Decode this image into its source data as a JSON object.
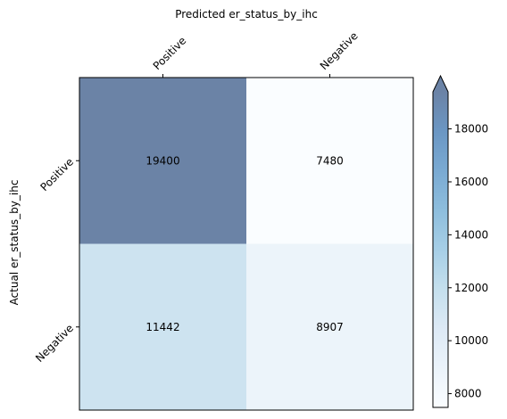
{
  "chart_data": {
    "type": "heatmap",
    "title": "Predicted er_status_by_ihc",
    "xlabel": "Predicted er_status_by_ihc",
    "ylabel": "Actual er_status_by_ihc",
    "x_categories": [
      "Positive",
      "Negative"
    ],
    "y_categories": [
      "Positive",
      "Negative"
    ],
    "values": [
      [
        19400,
        7480
      ],
      [
        11442,
        8907
      ]
    ],
    "colorbar": {
      "ticks": [
        8000,
        10000,
        12000,
        14000,
        16000,
        18000
      ],
      "range": [
        7480,
        19400
      ],
      "extend": "max",
      "colors": [
        "#f7fbff",
        "#deebf7",
        "#c6dbef",
        "#9ecae1",
        "#6baed6",
        "#4292c6",
        "#2171b5",
        "#08519c",
        "#08306b"
      ]
    }
  }
}
